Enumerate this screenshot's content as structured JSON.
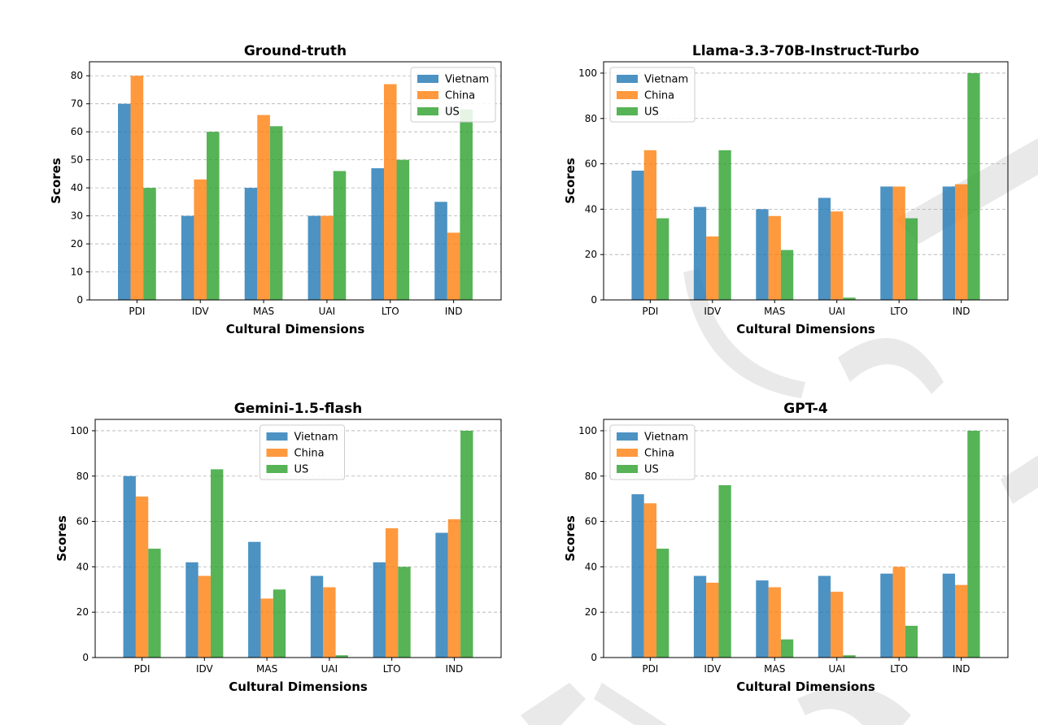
{
  "chart_data": [
    {
      "type": "bar",
      "title": "Ground-truth",
      "xlabel": "Cultural Dimensions",
      "ylabel": "Scores",
      "categories": [
        "PDI",
        "IDV",
        "MAS",
        "UAI",
        "LTO",
        "IND"
      ],
      "ylim": [
        0,
        85
      ],
      "yticks": [
        0,
        10,
        20,
        30,
        40,
        50,
        60,
        70,
        80
      ],
      "grid": true,
      "legend_position": "top-right",
      "series": [
        {
          "name": "Vietnam",
          "color": "#1f77b4",
          "values": [
            70,
            30,
            40,
            30,
            47,
            35
          ]
        },
        {
          "name": "China",
          "color": "#ff7f0e",
          "values": [
            80,
            43,
            66,
            30,
            77,
            24
          ]
        },
        {
          "name": "US",
          "color": "#2ca02c",
          "values": [
            40,
            60,
            62,
            46,
            50,
            68
          ]
        }
      ]
    },
    {
      "type": "bar",
      "title": "Llama-3.3-70B-Instruct-Turbo",
      "xlabel": "Cultural Dimensions",
      "ylabel": "Scores",
      "categories": [
        "PDI",
        "IDV",
        "MAS",
        "UAI",
        "LTO",
        "IND"
      ],
      "ylim": [
        0,
        105
      ],
      "yticks": [
        0,
        20,
        40,
        60,
        80,
        100
      ],
      "grid": true,
      "legend_position": "top-left",
      "series": [
        {
          "name": "Vietnam",
          "color": "#1f77b4",
          "values": [
            57,
            41,
            40,
            45,
            50,
            50
          ]
        },
        {
          "name": "China",
          "color": "#ff7f0e",
          "values": [
            66,
            28,
            37,
            39,
            50,
            51
          ]
        },
        {
          "name": "US",
          "color": "#2ca02c",
          "values": [
            36,
            66,
            22,
            1,
            36,
            100
          ]
        }
      ]
    },
    {
      "type": "bar",
      "title": "Gemini-1.5-flash",
      "xlabel": "Cultural Dimensions",
      "ylabel": "Scores",
      "categories": [
        "PDI",
        "IDV",
        "MAS",
        "UAI",
        "LTO",
        "IND"
      ],
      "ylim": [
        0,
        105
      ],
      "yticks": [
        0,
        20,
        40,
        60,
        80,
        100
      ],
      "grid": true,
      "legend_position": "top-center",
      "series": [
        {
          "name": "Vietnam",
          "color": "#1f77b4",
          "values": [
            80,
            42,
            51,
            36,
            42,
            55
          ]
        },
        {
          "name": "China",
          "color": "#ff7f0e",
          "values": [
            71,
            36,
            26,
            31,
            57,
            61
          ]
        },
        {
          "name": "US",
          "color": "#2ca02c",
          "values": [
            48,
            83,
            30,
            1,
            40,
            100
          ]
        }
      ]
    },
    {
      "type": "bar",
      "title": "GPT-4",
      "xlabel": "Cultural Dimensions",
      "ylabel": "Scores",
      "categories": [
        "PDI",
        "IDV",
        "MAS",
        "UAI",
        "LTO",
        "IND"
      ],
      "ylim": [
        0,
        105
      ],
      "yticks": [
        0,
        20,
        40,
        60,
        80,
        100
      ],
      "grid": true,
      "legend_position": "top-left",
      "series": [
        {
          "name": "Vietnam",
          "color": "#1f77b4",
          "values": [
            72,
            36,
            34,
            36,
            37,
            37
          ]
        },
        {
          "name": "China",
          "color": "#ff7f0e",
          "values": [
            68,
            33,
            31,
            29,
            40,
            32
          ]
        },
        {
          "name": "US",
          "color": "#2ca02c",
          "values": [
            48,
            76,
            8,
            1,
            14,
            100
          ]
        }
      ]
    }
  ]
}
